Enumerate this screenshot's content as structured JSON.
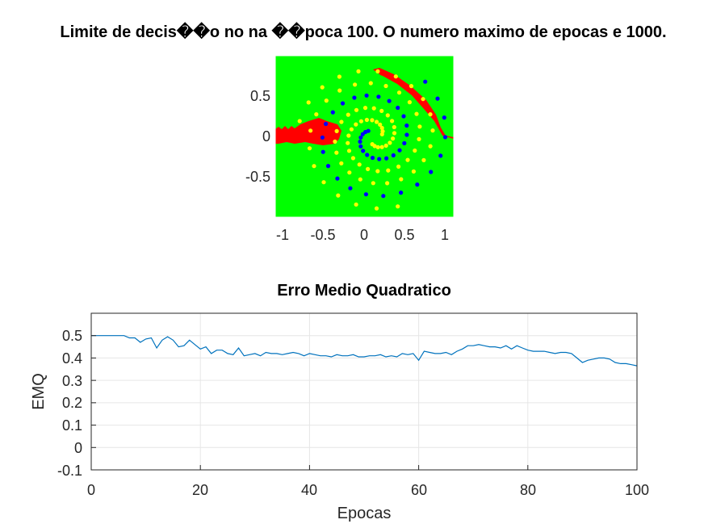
{
  "chart_data": [
    {
      "type": "scatter",
      "title": "Limite de decis��o no na ��poca 100. O numero maximo de epocas e 1000.",
      "xlabel": "",
      "ylabel": "",
      "xlim": [
        -1.1,
        1.1
      ],
      "ylim": [
        -1,
        1
      ],
      "x_ticks": [
        "-1",
        "-0.5",
        "0",
        "0.5",
        "1"
      ],
      "y_ticks": [
        "0.5",
        "0",
        "-0.5"
      ],
      "background_regions": {
        "red": "#ff0000",
        "green": "#00ff00"
      },
      "series": [
        {
          "color": "#ffff00",
          "spiral_start_angle_deg": 0
        },
        {
          "color": "#0000ff",
          "spiral_start_angle_deg": 120
        },
        {
          "color": "#ffff00",
          "spiral_start_angle_deg": 240
        }
      ],
      "spiral_turns": 1.8,
      "points_per_spiral": 40,
      "grid": false
    },
    {
      "type": "line",
      "title": "Erro Medio Quadratico",
      "xlabel": "Epocas",
      "ylabel": "EMQ",
      "xlim": [
        0,
        100
      ],
      "ylim": [
        -0.1,
        0.6
      ],
      "x_ticks": [
        "0",
        "20",
        "40",
        "60",
        "80",
        "100"
      ],
      "y_ticks": [
        "0.5",
        "0.4",
        "0.3",
        "0.2",
        "0.1",
        "0",
        "-0.1"
      ],
      "grid": true,
      "line_color": "#0072bd",
      "x": [
        0,
        1,
        2,
        3,
        4,
        5,
        6,
        7,
        8,
        9,
        10,
        11,
        12,
        13,
        14,
        15,
        16,
        17,
        18,
        19,
        20,
        21,
        22,
        23,
        24,
        25,
        26,
        27,
        28,
        29,
        30,
        31,
        32,
        33,
        34,
        35,
        36,
        37,
        38,
        39,
        40,
        41,
        42,
        43,
        44,
        45,
        46,
        47,
        48,
        49,
        50,
        51,
        52,
        53,
        54,
        55,
        56,
        57,
        58,
        59,
        60,
        61,
        62,
        63,
        64,
        65,
        66,
        67,
        68,
        69,
        70,
        71,
        72,
        73,
        74,
        75,
        76,
        77,
        78,
        79,
        80,
        81,
        82,
        83,
        84,
        85,
        86,
        87,
        88,
        89,
        90,
        91,
        92,
        93,
        94,
        95,
        96,
        97,
        98,
        99,
        100
      ],
      "y": [
        0.5,
        0.5,
        0.5,
        0.5,
        0.5,
        0.5,
        0.5,
        0.49,
        0.49,
        0.47,
        0.485,
        0.49,
        0.445,
        0.48,
        0.495,
        0.48,
        0.45,
        0.455,
        0.48,
        0.46,
        0.44,
        0.45,
        0.42,
        0.435,
        0.435,
        0.42,
        0.415,
        0.445,
        0.41,
        0.415,
        0.42,
        0.41,
        0.425,
        0.42,
        0.42,
        0.415,
        0.42,
        0.425,
        0.42,
        0.41,
        0.42,
        0.415,
        0.41,
        0.41,
        0.405,
        0.415,
        0.41,
        0.41,
        0.415,
        0.405,
        0.405,
        0.41,
        0.41,
        0.415,
        0.405,
        0.41,
        0.405,
        0.42,
        0.415,
        0.42,
        0.39,
        0.43,
        0.425,
        0.42,
        0.42,
        0.425,
        0.415,
        0.43,
        0.44,
        0.455,
        0.455,
        0.46,
        0.455,
        0.45,
        0.45,
        0.445,
        0.455,
        0.44,
        0.455,
        0.445,
        0.435,
        0.43,
        0.43,
        0.43,
        0.425,
        0.42,
        0.425,
        0.425,
        0.42,
        0.4,
        0.38,
        0.39,
        0.395,
        0.4,
        0.4,
        0.395,
        0.38,
        0.375,
        0.375,
        0.37,
        0.365
      ]
    }
  ]
}
